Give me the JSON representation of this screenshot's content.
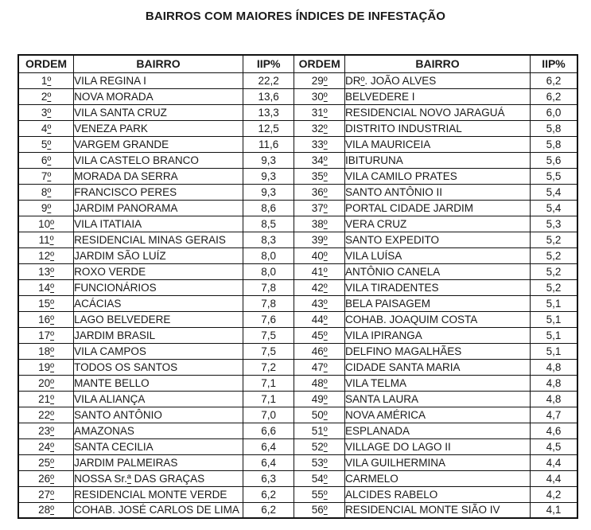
{
  "title": "BAIRROS COM MAIORES ÍNDICES DE INFESTAÇÃO",
  "colors": {
    "text": "#1a1a1a",
    "border": "#111111",
    "background": "#ffffff"
  },
  "table": {
    "headers": [
      "ORDEM",
      "BAIRRO",
      "IIP%",
      "ORDEM",
      "BAIRRO",
      "IIP%"
    ],
    "rows": [
      [
        "1º",
        "VILA REGINA I",
        "22,2",
        "29º",
        "DRº. JOÃO ALVES",
        "6,2"
      ],
      [
        "2º",
        "NOVA MORADA",
        "13,6",
        "30º",
        "BELVEDERE I",
        "6,2"
      ],
      [
        "3º",
        "VILA SANTA CRUZ",
        "13,3",
        "31º",
        "RESIDENCIAL NOVO JARAGUÁ",
        "6,0"
      ],
      [
        "4º",
        "VENEZA PARK",
        "12,5",
        "32º",
        "DISTRITO INDUSTRIAL",
        "5,8"
      ],
      [
        "5º",
        "VARGEM GRANDE",
        "11,6",
        "33º",
        "VILA MAURICEIA",
        "5,8"
      ],
      [
        "6º",
        "VILA CASTELO BRANCO",
        "9,3",
        "34º",
        "IBITURUNA",
        "5,6"
      ],
      [
        "7º",
        "MORADA DA SERRA",
        "9,3",
        "35º",
        "VILA CAMILO PRATES",
        "5,5"
      ],
      [
        "8º",
        "FRANCISCO PERES",
        "9,3",
        "36º",
        "SANTO ANTÔNIO II",
        "5,4"
      ],
      [
        "9º",
        "JARDIM PANORAMA",
        "8,6",
        "37º",
        "PORTAL CIDADE JARDIM",
        "5,4"
      ],
      [
        "10º",
        "VILA ITATIAIA",
        "8,5",
        "38º",
        "VERA CRUZ",
        "5,3"
      ],
      [
        "11º",
        "RESIDENCIAL MINAS GERAIS",
        "8,3",
        "39º",
        "SANTO EXPEDITO",
        "5,2"
      ],
      [
        "12º",
        "JARDIM SÃO LUÍZ",
        "8,0",
        "40º",
        "VILA LUÍSA",
        "5,2"
      ],
      [
        "13º",
        "ROXO VERDE",
        "8,0",
        "41º",
        "ANTÔNIO CANELA",
        "5,2"
      ],
      [
        "14º",
        "FUNCIONÁRIOS",
        "7,8",
        "42º",
        "VILA TIRADENTES",
        "5,2"
      ],
      [
        "15º",
        "ACÁCIAS",
        "7,8",
        "43º",
        "BELA PAISAGEM",
        "5,1"
      ],
      [
        "16º",
        "LAGO BELVEDERE",
        "7,6",
        "44º",
        "COHAB. JOAQUIM COSTA",
        "5,1"
      ],
      [
        "17º",
        "JARDIM BRASIL",
        "7,5",
        "45º",
        "VILA IPIRANGA",
        "5,1"
      ],
      [
        "18º",
        "VILA CAMPOS",
        "7,5",
        "46º",
        "DELFINO MAGALHÃES",
        "5,1"
      ],
      [
        "19º",
        "TODOS OS SANTOS",
        "7,2",
        "47º",
        "CIDADE SANTA MARIA",
        "4,8"
      ],
      [
        "20º",
        "MANTE BELLO",
        "7,1",
        "48º",
        "VILA TELMA",
        "4,8"
      ],
      [
        "21º",
        "VILA ALIANÇA",
        "7,1",
        "49º",
        "SANTA LAURA",
        "4,8"
      ],
      [
        "22º",
        "SANTO ANTÔNIO",
        "7,0",
        "50º",
        "NOVA AMÉRICA",
        "4,7"
      ],
      [
        "23º",
        "AMAZONAS",
        "6,6",
        "51º",
        "ESPLANADA",
        "4,6"
      ],
      [
        "24º",
        "SANTA CECILIA",
        "6,4",
        "52º",
        "VILLAGE DO LAGO II",
        "4,5"
      ],
      [
        "25º",
        "JARDIM PALMEIRAS",
        "6,4",
        "53º",
        "VILA GUILHERMINA",
        "4,4"
      ],
      [
        "26º",
        "NOSSA Sr.ª DAS GRAÇAS",
        "6,3",
        "54º",
        "CARMELO",
        "4,4"
      ],
      [
        "27º",
        "RESIDENCIAL MONTE VERDE",
        "6,2",
        "55º",
        "ALCIDES RABELO",
        "4,2"
      ],
      [
        "28º",
        "COHAB. JOSÉ CARLOS DE LIMA",
        "6,2",
        "56º",
        "RESIDENCIAL MONTE SIÃO IV",
        "4,1"
      ]
    ]
  }
}
